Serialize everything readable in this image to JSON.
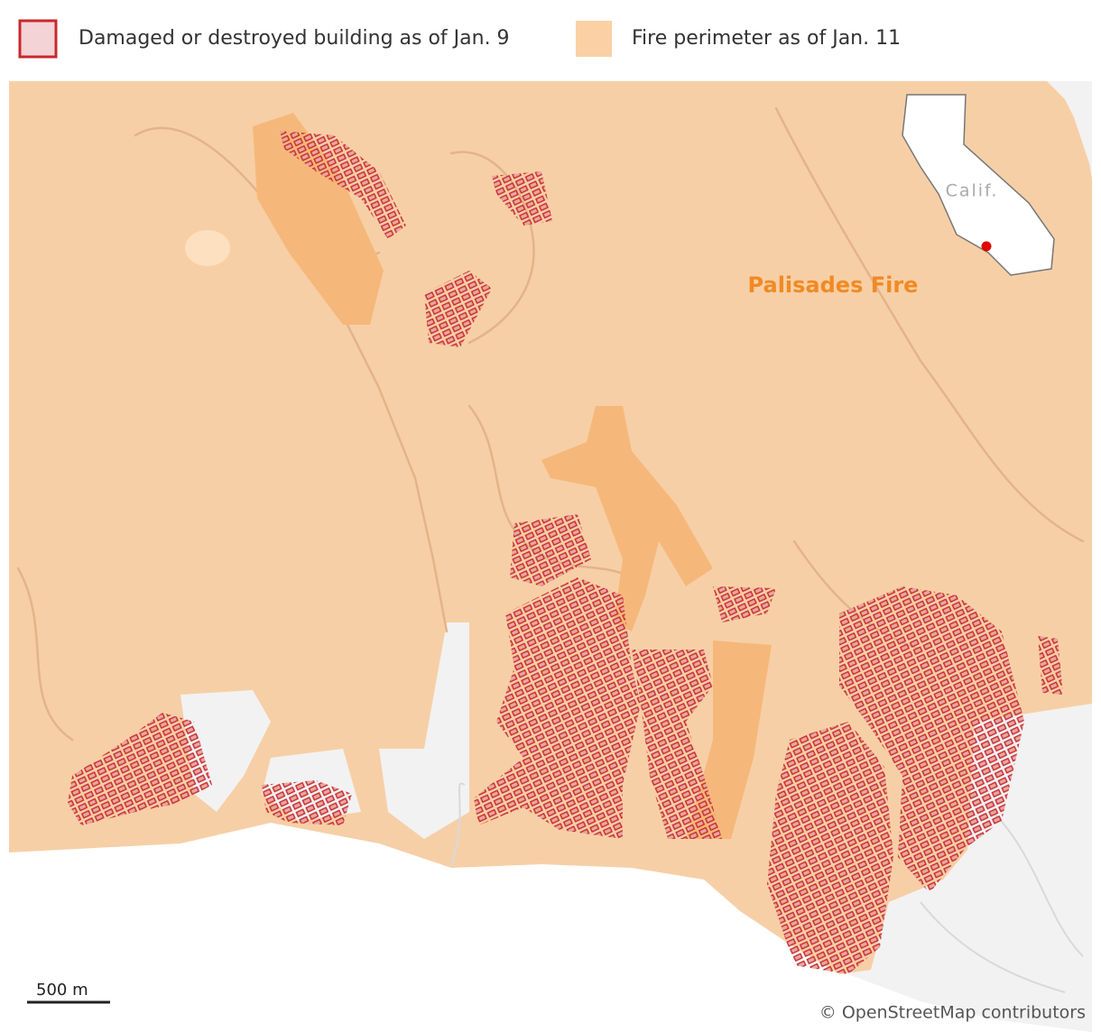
{
  "legend": {
    "items": [
      {
        "label": "Damaged or destroyed building as of Jan. 9"
      },
      {
        "label": "Fire perimeter as of Jan. 11"
      }
    ]
  },
  "map": {
    "fire_label": "Palisades Fire",
    "inset": {
      "label": "Calif."
    },
    "scale": {
      "label": "500 m"
    },
    "attribution": "© OpenStreetMap contributors"
  }
}
